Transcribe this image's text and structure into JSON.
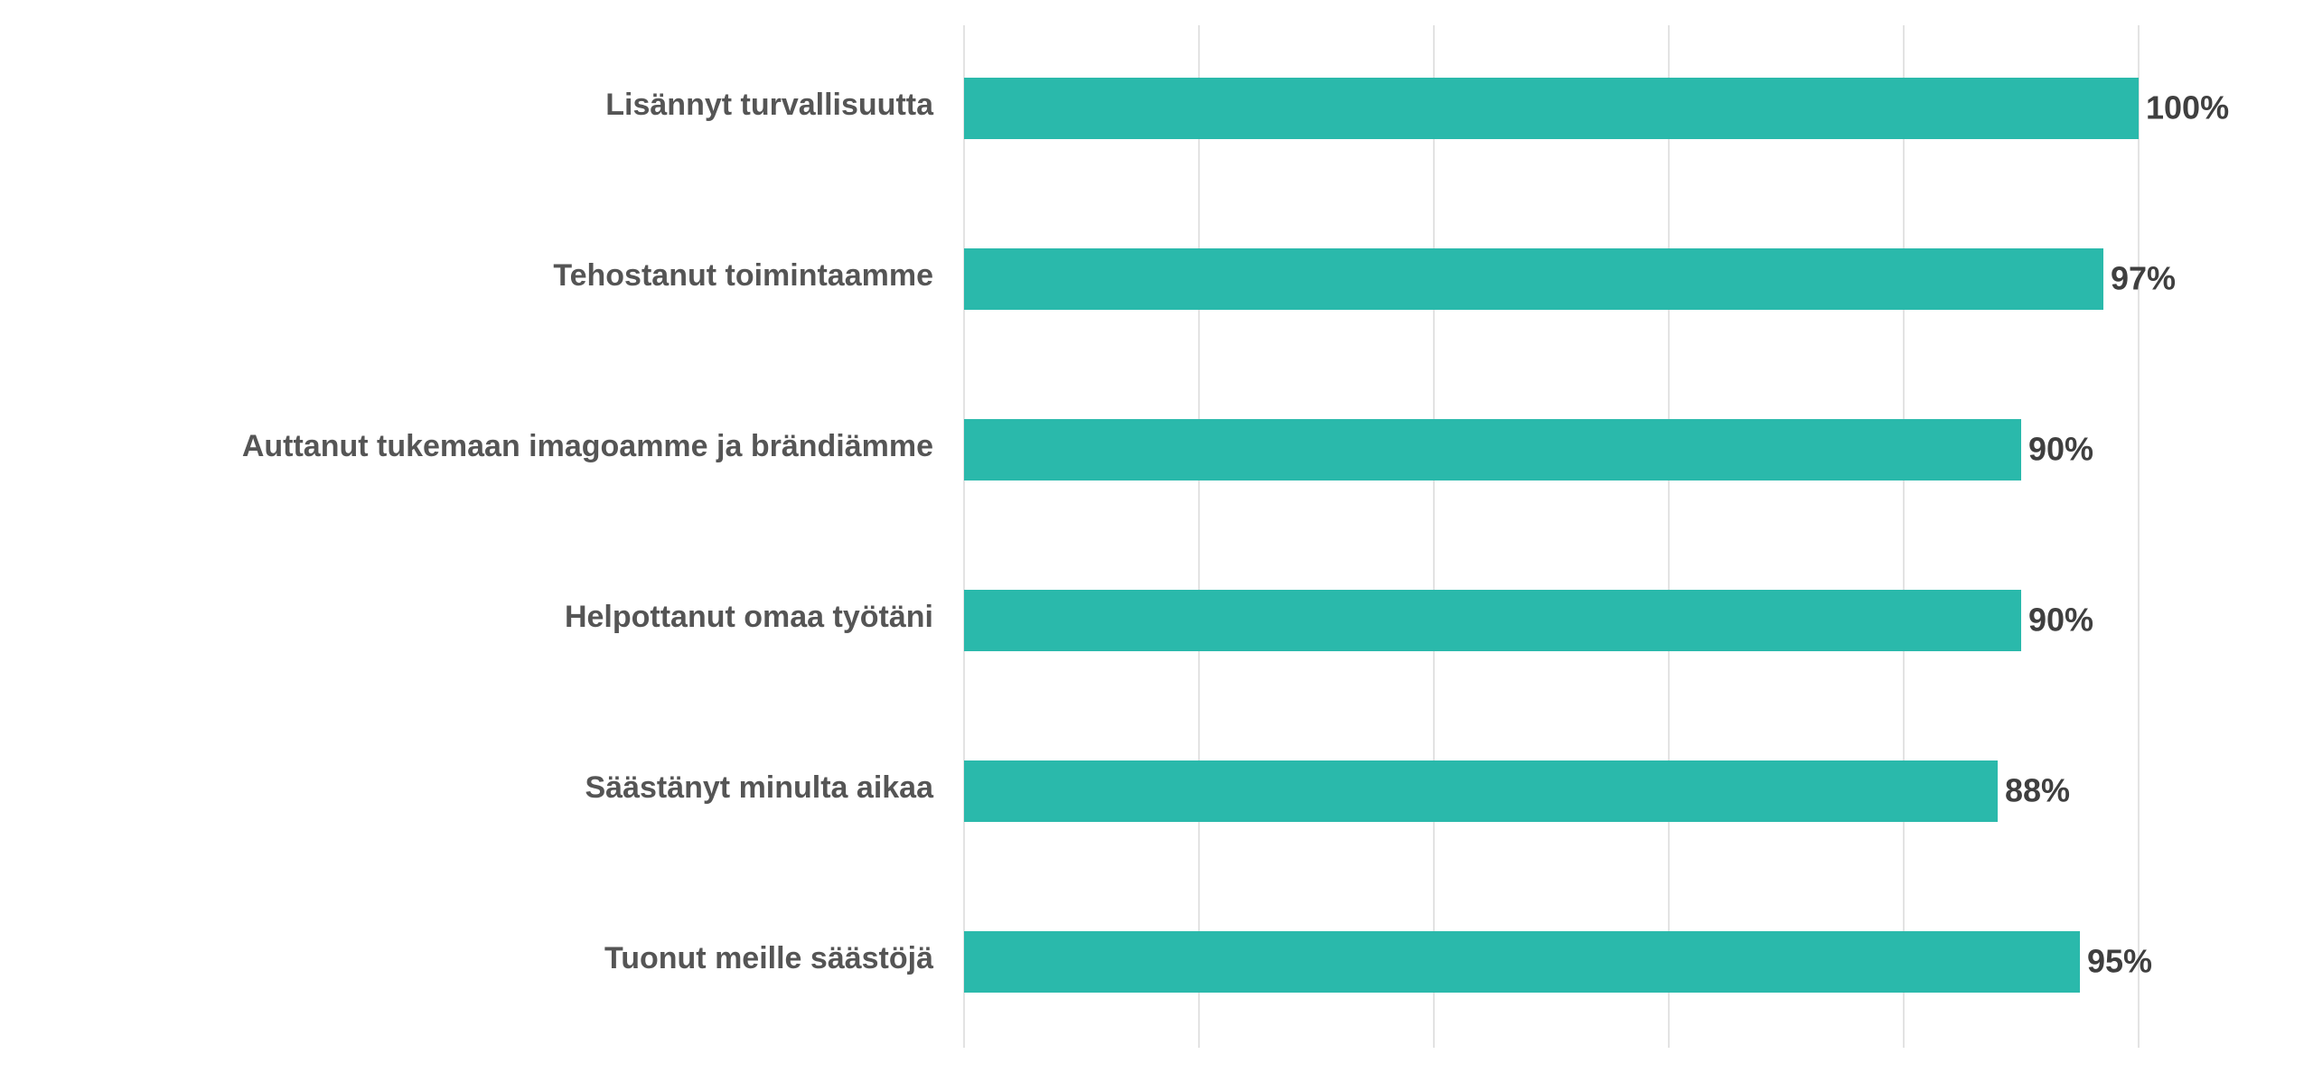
{
  "chart_data": {
    "type": "bar",
    "orientation": "horizontal",
    "categories": [
      "Lisännyt turvallisuutta",
      "Tehostanut toimintaamme",
      "Auttanut tukemaan imagoamme ja brändiämme",
      "Helpottanut omaa työtäni",
      "Säästänyt minulta aikaa",
      "Tuonut meille säästöjä"
    ],
    "values": [
      100,
      97,
      90,
      90,
      88,
      95
    ],
    "value_labels": [
      "100%",
      "97%",
      "90%",
      "90%",
      "88%",
      "95%"
    ],
    "xlim": [
      0,
      100
    ],
    "grid": true,
    "legend": "none",
    "colors": {
      "bar": "#2ab9ab",
      "category_text": "#555555",
      "value_text": "#3f3f3f",
      "grid": "#e3e3e3"
    }
  }
}
